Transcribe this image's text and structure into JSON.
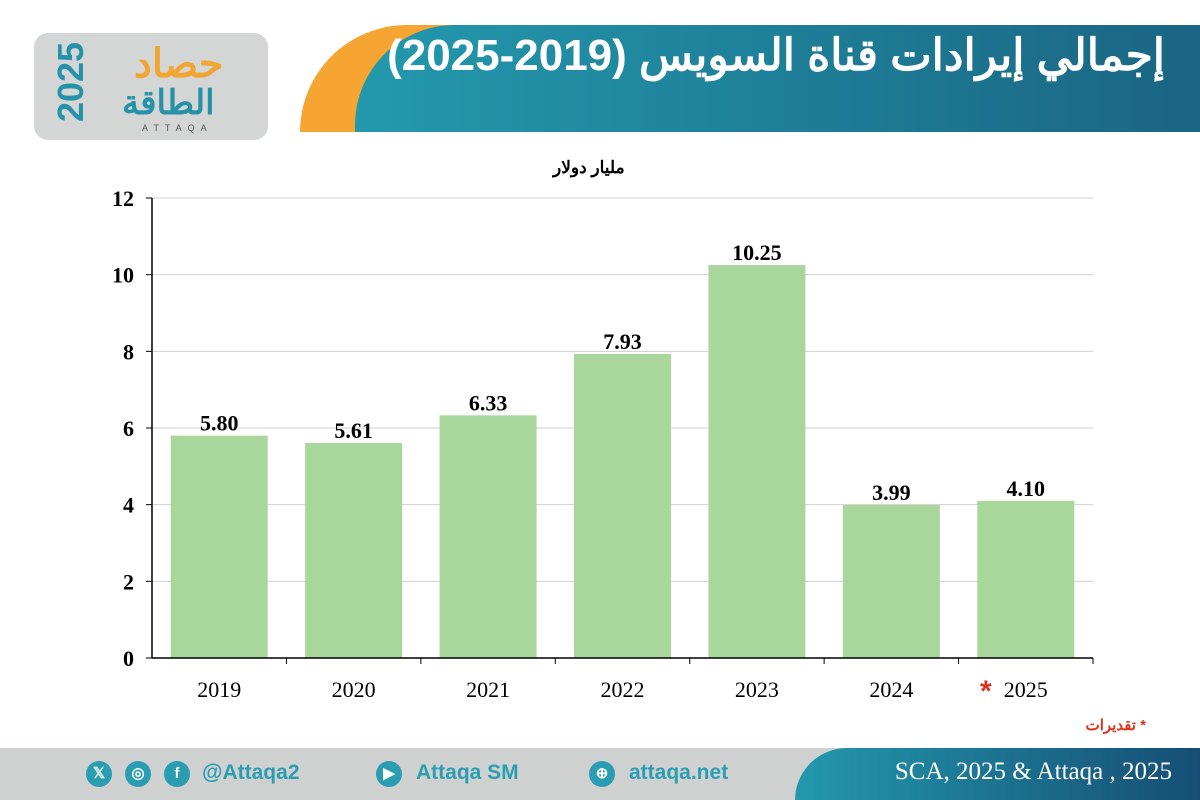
{
  "logo": {
    "line1": "حصاد",
    "line2": "الطاقة",
    "year": "2025",
    "latin": "ATTAQA"
  },
  "title": "إجمالي إيرادات قناة السويس (2019-2025)",
  "note": "* تقديرات",
  "footer": {
    "handle": "@Attaqa2",
    "youtube": "Attaqa SM",
    "site": "attaqa.net",
    "source": "SCA, 2025 & Attaqa , 2025"
  },
  "colors": {
    "bar": "#a9d69b",
    "accent": "#2399ad",
    "orange": "#f6a533",
    "asterisk": "#d8341f"
  },
  "chart_data": {
    "type": "bar",
    "ylabel": "مليار دولار",
    "categories": [
      "2019",
      "2020",
      "2021",
      "2022",
      "2023",
      "2024",
      "2025"
    ],
    "values": [
      5.8,
      5.61,
      6.33,
      7.93,
      10.25,
      3.99,
      4.1
    ],
    "value_labels": [
      "5.80",
      "5.61",
      "6.33",
      "7.93",
      "10.25",
      "3.99",
      "4.10"
    ],
    "estimate_marker": {
      "category": "2025",
      "symbol": "*"
    },
    "ylim": [
      0,
      12
    ],
    "yticks": [
      "0",
      "2",
      "4",
      "6",
      "8",
      "10",
      "12"
    ],
    "grid": true
  }
}
